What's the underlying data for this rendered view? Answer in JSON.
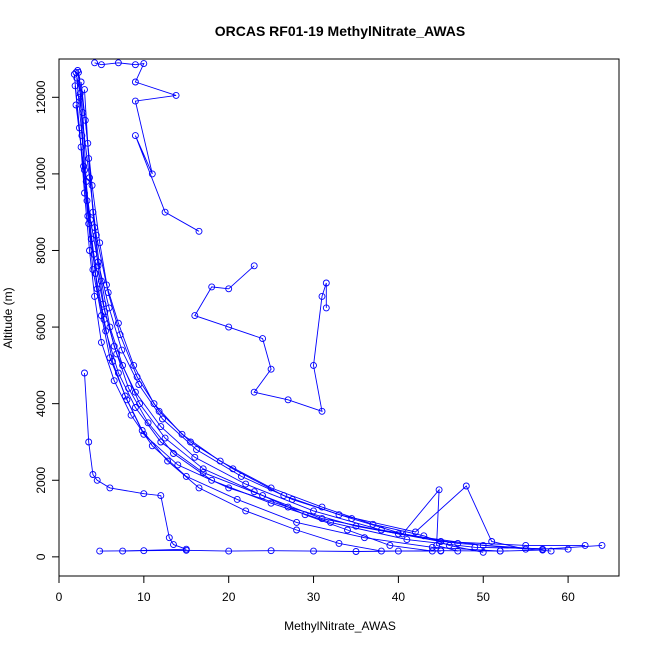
{
  "chart_data": {
    "type": "line",
    "title": "ORCAS RF01-19 MethylNitrate_AWAS",
    "xlabel": "MethylNitrate_AWAS",
    "ylabel": "Altitude (m)",
    "xlim": [
      0,
      66
    ],
    "ylim": [
      -500,
      13000
    ],
    "x_ticks": [
      0,
      10,
      20,
      30,
      40,
      50,
      60
    ],
    "y_ticks": [
      0,
      2000,
      4000,
      6000,
      8000,
      10000,
      12000
    ],
    "series_color": "#0000ff",
    "marker": "open-circle",
    "series": [
      {
        "values": [
          [
            2.0,
            12650
          ],
          [
            2.5,
            12100
          ],
          [
            3.0,
            10100
          ],
          [
            3.5,
            8700
          ],
          [
            4.0,
            7500
          ],
          [
            5.0,
            6300
          ],
          [
            6.0,
            5200
          ],
          [
            8.0,
            4100
          ],
          [
            10.0,
            3200
          ],
          [
            14.0,
            2400
          ],
          [
            20.0,
            1800
          ],
          [
            27.0,
            1300
          ],
          [
            35.0,
            800
          ],
          [
            45.0,
            400
          ],
          [
            55.0,
            300
          ],
          [
            62.0,
            300
          ]
        ]
      },
      {
        "values": [
          [
            2.2,
            12700
          ],
          [
            2.8,
            11600
          ],
          [
            3.2,
            9800
          ],
          [
            3.8,
            8300
          ],
          [
            4.5,
            7000
          ],
          [
            5.5,
            5900
          ],
          [
            7.0,
            4800
          ],
          [
            9.0,
            3900
          ],
          [
            12.0,
            3000
          ],
          [
            17.0,
            2200
          ],
          [
            24.0,
            1600
          ],
          [
            31.0,
            1000
          ],
          [
            40.0,
            600
          ],
          [
            50.0,
            300
          ],
          [
            58.0,
            150
          ]
        ]
      },
      {
        "values": [
          [
            1.8,
            12600
          ],
          [
            2.4,
            11200
          ],
          [
            3.0,
            9500
          ],
          [
            3.6,
            8000
          ],
          [
            4.2,
            6800
          ],
          [
            5.0,
            5600
          ],
          [
            6.5,
            4600
          ],
          [
            8.5,
            3700
          ],
          [
            11.0,
            2900
          ],
          [
            15.0,
            2100
          ],
          [
            21.0,
            1500
          ],
          [
            28.0,
            900
          ],
          [
            36.0,
            500
          ],
          [
            44.0,
            250
          ],
          [
            52.0,
            150
          ]
        ]
      },
      {
        "values": [
          [
            2.6,
            12400
          ],
          [
            3.4,
            10800
          ],
          [
            4.0,
            9000
          ],
          [
            4.6,
            7600
          ],
          [
            5.4,
            6400
          ],
          [
            6.8,
            5300
          ],
          [
            9.0,
            4300
          ],
          [
            12.0,
            3400
          ],
          [
            16.0,
            2600
          ],
          [
            22.0,
            1900
          ],
          [
            30.0,
            1200
          ],
          [
            38.0,
            700
          ],
          [
            47.0,
            350
          ],
          [
            57.0,
            200
          ],
          [
            64.0,
            300
          ]
        ]
      },
      {
        "values": [
          [
            2.1,
            12500
          ],
          [
            2.7,
            11000
          ],
          [
            3.3,
            9300
          ],
          [
            4.1,
            7900
          ],
          [
            5.2,
            6600
          ],
          [
            6.5,
            5500
          ],
          [
            8.2,
            4400
          ],
          [
            10.5,
            3500
          ],
          [
            13.5,
            2700
          ],
          [
            18.0,
            2000
          ],
          [
            25.0,
            1400
          ],
          [
            32.0,
            900
          ],
          [
            41.0,
            450
          ],
          [
            49.0,
            250
          ],
          [
            60.0,
            200
          ]
        ]
      },
      {
        "values": [
          [
            3.0,
            12200
          ],
          [
            3.5,
            10400
          ],
          [
            4.2,
            8600
          ],
          [
            5.0,
            7200
          ],
          [
            6.0,
            6000
          ],
          [
            7.5,
            5000
          ],
          [
            9.5,
            4000
          ],
          [
            12.5,
            3100
          ],
          [
            17.0,
            2300
          ],
          [
            23.0,
            1700
          ],
          [
            29.0,
            1100
          ],
          [
            34.0,
            700
          ],
          [
            39.0,
            300
          ],
          [
            44.0,
            150
          ]
        ]
      },
      {
        "values": [
          [
            2.3,
            12650
          ],
          [
            3.1,
            11400
          ],
          [
            3.9,
            9700
          ],
          [
            4.8,
            8200
          ],
          [
            5.8,
            6900
          ],
          [
            7.2,
            5800
          ],
          [
            9.2,
            4700
          ],
          [
            11.8,
            3800
          ],
          [
            15.5,
            3000
          ],
          [
            20.5,
            2300
          ],
          [
            26.5,
            1600
          ],
          [
            33.0,
            1100
          ],
          [
            42.0,
            650
          ],
          [
            48.0,
            1850
          ],
          [
            51.0,
            400
          ],
          [
            55.0,
            200
          ]
        ]
      },
      {
        "values": [
          [
            1.9,
            12300
          ],
          [
            2.6,
            10700
          ],
          [
            3.4,
            8900
          ],
          [
            4.3,
            7400
          ],
          [
            5.3,
            6200
          ],
          [
            6.3,
            5100
          ],
          [
            7.8,
            4200
          ],
          [
            9.8,
            3300
          ],
          [
            12.8,
            2500
          ],
          [
            16.5,
            1800
          ],
          [
            22.0,
            1200
          ],
          [
            28.0,
            700
          ],
          [
            33.0,
            350
          ],
          [
            38.0,
            150
          ],
          [
            45.0,
            150
          ]
        ]
      },
      {
        "values": [
          [
            4.2,
            12900
          ],
          [
            5.0,
            12850
          ],
          [
            7.0,
            12900
          ],
          [
            9.0,
            12850
          ],
          [
            10.0,
            12880
          ],
          [
            9.0,
            12400
          ],
          [
            13.8,
            12050
          ],
          [
            9.0,
            11900
          ],
          [
            11.0,
            10000
          ],
          [
            9.0,
            11000
          ],
          [
            12.5,
            9000
          ],
          [
            16.5,
            8500
          ]
        ]
      },
      {
        "values": [
          [
            23.0,
            7600
          ],
          [
            20.0,
            7000
          ],
          [
            18.0,
            7050
          ],
          [
            16.0,
            6300
          ],
          [
            20.0,
            6000
          ],
          [
            24.0,
            5700
          ],
          [
            25.0,
            4900
          ],
          [
            23.0,
            4300
          ],
          [
            27.0,
            4100
          ],
          [
            31.0,
            3800
          ],
          [
            30.0,
            5000
          ],
          [
            31.0,
            6800
          ],
          [
            31.5,
            7150
          ],
          [
            31.5,
            6500
          ]
        ]
      },
      {
        "values": [
          [
            4.8,
            150
          ],
          [
            10.0,
            160
          ],
          [
            15.0,
            170
          ],
          [
            20.0,
            150
          ],
          [
            25.0,
            160
          ],
          [
            30.0,
            150
          ],
          [
            35.0,
            140
          ],
          [
            40.0,
            150
          ],
          [
            45.0,
            160
          ],
          [
            52.0,
            150
          ],
          [
            57.0,
            180
          ]
        ]
      },
      {
        "values": [
          [
            3.0,
            4800
          ],
          [
            3.5,
            3000
          ],
          [
            4.0,
            2150
          ],
          [
            4.5,
            2000
          ],
          [
            6.0,
            1800
          ],
          [
            10.0,
            1650
          ],
          [
            12.0,
            1600
          ],
          [
            13.0,
            500
          ],
          [
            13.5,
            320
          ],
          [
            15.0,
            200
          ],
          [
            7.5,
            150
          ]
        ]
      },
      {
        "values": [
          [
            2.4,
            12000
          ],
          [
            3.6,
            9900
          ],
          [
            4.4,
            8400
          ],
          [
            5.6,
            7100
          ],
          [
            7.0,
            6100
          ],
          [
            8.8,
            5000
          ],
          [
            11.2,
            4000
          ],
          [
            14.5,
            3200
          ],
          [
            19.0,
            2500
          ],
          [
            25.0,
            1800
          ],
          [
            31.0,
            1300
          ],
          [
            37.0,
            850
          ],
          [
            43.0,
            550
          ],
          [
            46.0,
            300
          ],
          [
            50.0,
            120
          ]
        ]
      },
      {
        "values": [
          [
            2.0,
            11800
          ],
          [
            2.9,
            10200
          ],
          [
            3.7,
            8800
          ],
          [
            4.6,
            7700
          ],
          [
            5.9,
            6500
          ],
          [
            7.4,
            5400
          ],
          [
            9.4,
            4500
          ],
          [
            12.2,
            3600
          ],
          [
            16.2,
            2800
          ],
          [
            21.5,
            2100
          ],
          [
            27.5,
            1500
          ],
          [
            34.5,
            1000
          ],
          [
            40.5,
            600
          ],
          [
            44.8,
            1750
          ],
          [
            44.5,
            300
          ],
          [
            47.0,
            150
          ]
        ]
      }
    ]
  }
}
